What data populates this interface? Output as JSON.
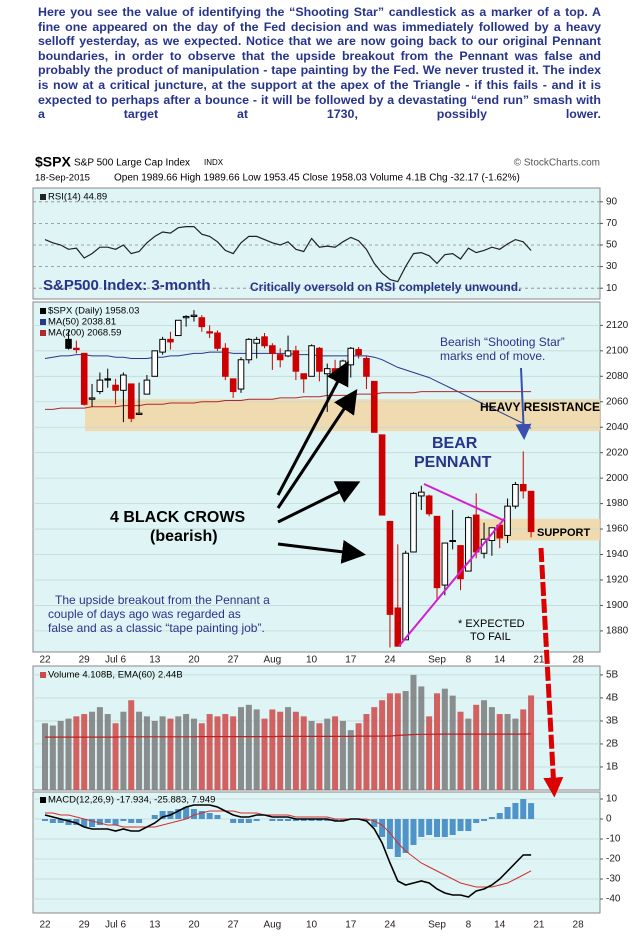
{
  "commentary": "Here you see the value of identifying the “Shooting Star” candlestick as a marker of a top. A fine one appeared on the day of the Fed decision and was immediately followed by a heavy selloff yesterday, as we expected. Notice that we are now going back to our original Pennant boundaries, in order to observe that the upside breakout from the Pennant was false and probably the product of manipulation - tape painting by the Fed. We never trusted it. The index is now at a critical juncture, at the support at the apex of the Triangle - if this fails - and it is expected to perhaps after a bounce -  it will be followed by a devastating “end run” smash with a target at 1730, possibly lower.",
  "chart_data": {
    "type": "candlestick",
    "symbol": "$SPX",
    "name": "S&P 500 Large Cap Index",
    "exchange": "INDX",
    "date": "18-Sep-2015",
    "quote": "Open 1989.66  High 1989.66  Low 1953.45  Close 1958.03  Volume 4.1B  Chg -32.17 (-1.62%)",
    "source": "© StockCharts.com",
    "categories": [
      "22",
      null,
      null,
      null,
      null,
      "29",
      null,
      null,
      null,
      "Jul 6",
      null,
      null,
      null,
      null,
      "13",
      null,
      null,
      null,
      null,
      "20",
      null,
      null,
      null,
      null,
      "27",
      null,
      null,
      null,
      null,
      "Aug",
      null,
      null,
      null,
      null,
      "10",
      null,
      null,
      null,
      null,
      "17",
      null,
      null,
      null,
      null,
      "24",
      null,
      null,
      null,
      null,
      null,
      "Sep",
      null,
      null,
      null,
      "8",
      null,
      null,
      null,
      "14",
      null,
      null,
      null,
      null,
      "21",
      null,
      null,
      null,
      null,
      "28",
      null,
      null,
      null,
      null
    ],
    "rsi": {
      "ylim": [
        0,
        100
      ],
      "yticks": [
        10,
        30,
        50,
        70,
        90
      ],
      "series": [
        {
          "name": "RSI(14) 44.89",
          "color": "#222222",
          "values": [
            55,
            52,
            50,
            46,
            47,
            38,
            42,
            48,
            48,
            46,
            50,
            42,
            44,
            52,
            58,
            62,
            61,
            66,
            67,
            67,
            60,
            58,
            53,
            45,
            42,
            52,
            58,
            58,
            55,
            52,
            50,
            53,
            46,
            44,
            56,
            48,
            49,
            48,
            53,
            57,
            54,
            46,
            33,
            24,
            18,
            16,
            30,
            42,
            43,
            40,
            33,
            41,
            42,
            37,
            47,
            43,
            45,
            48,
            46,
            51,
            55,
            53,
            44.89,
            null,
            null,
            null,
            null,
            null,
            null,
            null,
            null,
            null,
            null
          ]
        }
      ]
    },
    "price": {
      "label": "$SPX (Daily) 1958.03",
      "ylim": [
        1865,
        2136
      ],
      "yticks": [
        1880,
        1900,
        1920,
        1940,
        1960,
        1980,
        2000,
        2020,
        2040,
        2060,
        2080,
        2100,
        2120
      ],
      "up_color": "#000000",
      "down_color": "#cc0000",
      "open": [
        null,
        null,
        null,
        2109,
        2102,
        2098,
        2062,
        2068,
        2078,
        2073,
        2069,
        2074,
        2050,
        2066,
        2080,
        2099,
        2109,
        2112,
        2126,
        2127,
        2126,
        2115,
        2114,
        2102,
        2078,
        2070,
        2093,
        2106,
        2111,
        2104,
        2097,
        2096,
        2100,
        2082,
        2080,
        2102,
        2082,
        2086,
        2083,
        2089,
        2101,
        2094,
        2076,
        2034,
        1966,
        1898,
        1873,
        1942,
        1986,
        1986,
        1970,
        1916,
        1951,
        1947,
        1927,
        1971,
        1941,
        1951,
        1963,
        1955,
        1978,
        1995,
        1989.66,
        null,
        null,
        null,
        null,
        null,
        null,
        null,
        null,
        null,
        null
      ],
      "high": [
        null,
        null,
        null,
        2116,
        2108,
        2098,
        2074,
        2083,
        2086,
        2078,
        2083,
        2074,
        2075,
        2081,
        2100,
        2111,
        2115,
        2124,
        2128,
        2132,
        2128,
        2120,
        2116,
        2106,
        2078,
        2095,
        2110,
        2111,
        2114,
        2106,
        2102,
        2112,
        2104,
        2082,
        2105,
        2103,
        2090,
        2093,
        2093,
        2103,
        2103,
        2096,
        2076,
        2034,
        1966,
        1948,
        1943,
        1989,
        1994,
        1987,
        1970,
        1949,
        1975,
        1947,
        1970,
        1988,
        1965,
        1961,
        1963,
        1984,
        1997,
        2021,
        1989.66,
        null,
        null,
        null,
        null,
        null,
        null,
        null,
        null,
        null,
        null
      ],
      "low": [
        null,
        null,
        null,
        2101,
        2098,
        2057,
        2056,
        2066,
        2071,
        2058,
        2044,
        2044,
        2050,
        2066,
        2080,
        2097,
        2101,
        2112,
        2119,
        2123,
        2115,
        2110,
        2100,
        2077,
        2063,
        2067,
        2090,
        2094,
        2102,
        2085,
        2087,
        2095,
        2077,
        2067,
        2080,
        2076,
        2052,
        2076,
        2079,
        2079,
        2094,
        2070,
        2036,
        1971,
        1867,
        1868,
        1873,
        1942,
        1975,
        1970,
        1904,
        1908,
        1944,
        1912,
        1927,
        1937,
        1937,
        1939,
        1945,
        1949,
        1976,
        1984,
        1953.45,
        null,
        null,
        null,
        null,
        null,
        null,
        null,
        null,
        null,
        null
      ],
      "close": [
        null,
        null,
        null,
        2102,
        2101,
        2058,
        2063,
        2077,
        2077,
        2069,
        2081,
        2047,
        2051,
        2077,
        2100,
        2109,
        2107,
        2124,
        2127,
        2128,
        2119,
        2114,
        2102,
        2080,
        2068,
        2093,
        2109,
        2109,
        2104,
        2098,
        2093,
        2100,
        2084,
        2078,
        2104,
        2084,
        2086,
        2083,
        2092,
        2102,
        2097,
        2080,
        2036,
        1971,
        1893,
        1868,
        1941,
        1988,
        1989,
        1972,
        1914,
        1949,
        1951,
        1921,
        1969,
        1942,
        1952,
        1961,
        1953,
        1978,
        1995,
        1990,
        1958.03,
        null,
        null,
        null,
        null,
        null,
        null,
        null,
        null,
        null,
        null
      ],
      "series": [
        {
          "name": "MA(50) 2038.81",
          "color": "#25388f",
          "values": [
            2094,
            2095,
            2096,
            2096,
            2097,
            2097,
            2096,
            2096,
            2096,
            2095,
            2095,
            2094,
            2094,
            2094,
            2095,
            2095,
            2096,
            2096,
            2097,
            2098,
            2098,
            2099,
            2099,
            2099,
            2098,
            2098,
            2098,
            2098,
            2098,
            2098,
            2098,
            2098,
            2097,
            2097,
            2097,
            2096,
            2096,
            2096,
            2096,
            2096,
            2096,
            2096,
            2095,
            2093,
            2090,
            2087,
            2085,
            2083,
            2081,
            2079,
            2076,
            2073,
            2070,
            2067,
            2064,
            2061,
            2058,
            2055,
            2052,
            2049,
            2046,
            2043,
            2039,
            null,
            null,
            null,
            null,
            null,
            null,
            null,
            null,
            null,
            null
          ]
        },
        {
          "name": "MA(200) 2068.59",
          "color": "#b0282c",
          "values": [
            2054,
            2054,
            2055,
            2055,
            2055,
            2055,
            2056,
            2056,
            2056,
            2056,
            2057,
            2057,
            2057,
            2058,
            2058,
            2058,
            2059,
            2059,
            2059,
            2059,
            2060,
            2060,
            2060,
            2061,
            2061,
            2061,
            2062,
            2062,
            2062,
            2062,
            2063,
            2063,
            2063,
            2064,
            2064,
            2064,
            2065,
            2065,
            2065,
            2065,
            2066,
            2066,
            2066,
            2067,
            2067,
            2067,
            2067,
            2067,
            2068,
            2068,
            2068,
            2068,
            2068,
            2068,
            2068,
            2068,
            2068,
            2068,
            2068,
            2068,
            2068,
            2068,
            2068,
            null,
            null,
            null,
            null,
            null,
            null,
            null,
            null,
            null,
            null
          ]
        }
      ],
      "zones": [
        {
          "label": "HEAVY RESISTANCE",
          "range": [
            2037,
            2062
          ],
          "color": "#f2d6a2"
        },
        {
          "label": "SUPPORT",
          "range": [
            1951,
            1968
          ],
          "color": "#f2d6a2"
        }
      ],
      "annotations": {
        "heading": "S&P500 Index: 3-month",
        "rsi_note": "Critically oversold on RSI completely unwound.",
        "shooting_star": [
          "Bearish “Shooting Star”",
          "marks end of move."
        ],
        "pennant": [
          "BEAR",
          "PENNANT"
        ],
        "crows": [
          "4 BLACK CROWS",
          "(bearish)"
        ],
        "breakout": [
          "The upside breakout from the Pennant a",
          "couple of days ago was regarded as",
          "false and as a classic “tape painting job”."
        ],
        "fail": [
          "* EXPECTED",
          "TO FAIL"
        ]
      }
    },
    "volume": {
      "label": "Volume 4.108B, EMA(60) 2.44B",
      "ylim": [
        0,
        5.3
      ],
      "yticks": [
        {
          "value": 1,
          "label": "1B"
        },
        {
          "value": 2,
          "label": "2B"
        },
        {
          "value": 3,
          "label": "3B"
        },
        {
          "value": 4,
          "label": "4B"
        },
        {
          "value": 5,
          "label": "5B"
        }
      ],
      "up_color": "#7a7a7a",
      "down_color": "#d04848",
      "values": [
        2.9,
        2.8,
        3.0,
        3.1,
        3.2,
        3.3,
        3.4,
        3.6,
        3.3,
        2.9,
        3.4,
        3.9,
        3.4,
        3.2,
        3.0,
        3.2,
        3.1,
        3.2,
        3.3,
        3.1,
        2.9,
        3.3,
        3.2,
        3.3,
        3.2,
        3.6,
        3.7,
        3.5,
        3.1,
        3.5,
        3.4,
        3.6,
        3.4,
        3.2,
        3.0,
        2.9,
        3.1,
        3.2,
        3.0,
        2.6,
        2.9,
        3.3,
        3.6,
        3.9,
        4.2,
        4.2,
        4.3,
        5.0,
        4.5,
        3.2,
        4.2,
        4.4,
        4.1,
        3.4,
        3.1,
        3.7,
        3.9,
        3.6,
        3.3,
        3.3,
        3.1,
        3.5,
        4.108,
        null,
        null,
        null,
        null,
        null,
        null,
        null,
        null,
        null,
        null
      ],
      "ema": {
        "color": "#c02020",
        "values": [
          2.3,
          2.3,
          2.3,
          2.3,
          2.3,
          2.3,
          2.3,
          2.3,
          2.3,
          2.3,
          2.31,
          2.31,
          2.31,
          2.31,
          2.31,
          2.31,
          2.31,
          2.31,
          2.31,
          2.31,
          2.32,
          2.32,
          2.32,
          2.32,
          2.32,
          2.32,
          2.32,
          2.32,
          2.32,
          2.32,
          2.33,
          2.33,
          2.33,
          2.33,
          2.33,
          2.33,
          2.33,
          2.33,
          2.33,
          2.33,
          2.34,
          2.34,
          2.34,
          2.34,
          2.34,
          2.37,
          2.39,
          2.41,
          2.42,
          2.42,
          2.43,
          2.43,
          2.43,
          2.43,
          2.43,
          2.43,
          2.43,
          2.43,
          2.43,
          2.43,
          2.43,
          2.43,
          2.44,
          null,
          null,
          null,
          null,
          null,
          null,
          null,
          null,
          null,
          null
        ]
      }
    },
    "macd": {
      "label": "MACD(12,26,9) -17.934, -25.883, 7.949",
      "ylim": [
        -47,
        13
      ],
      "yticks": [
        -40,
        -30,
        -20,
        -10,
        0,
        10
      ],
      "macd": {
        "color": "#000000",
        "values": [
          2,
          1,
          0,
          -1,
          -2,
          -4,
          -5,
          -5,
          -5,
          -6,
          -5,
          -6,
          -6,
          -4,
          -2,
          1,
          2,
          4,
          6,
          7,
          7,
          7,
          6,
          4,
          2,
          1,
          1,
          2,
          2,
          1,
          1,
          1,
          0,
          0,
          0,
          0,
          0,
          -1,
          -1,
          0,
          0,
          -1,
          -5,
          -12,
          -22,
          -31,
          -33,
          -32,
          -31,
          -32,
          -35,
          -37,
          -38,
          -38,
          -39,
          -36,
          -35,
          -33,
          -30,
          -26,
          -22,
          -18,
          -17.934,
          null,
          null,
          null,
          null,
          null,
          null,
          null,
          null,
          null,
          null
        ]
      },
      "signal": {
        "color": "#d03030",
        "values": [
          3,
          3,
          2,
          2,
          1,
          0,
          -1,
          -2,
          -3,
          -3,
          -4,
          -4,
          -4,
          -4,
          -4,
          -3,
          -2,
          -1,
          0,
          2,
          3,
          4,
          4,
          4,
          4,
          3,
          3,
          3,
          2,
          2,
          2,
          2,
          1,
          1,
          1,
          1,
          1,
          0,
          0,
          0,
          0,
          0,
          -1,
          -3,
          -7,
          -12,
          -16,
          -19,
          -22,
          -24,
          -26,
          -28,
          -30,
          -32,
          -33,
          -34,
          -34,
          -34,
          -33,
          -32,
          -30,
          -28,
          -25.883,
          null,
          null,
          null,
          null,
          null,
          null,
          null,
          null,
          null,
          null
        ]
      },
      "histogram": {
        "color": "#4f93c9",
        "values": [
          -1,
          -2,
          -2,
          -3,
          -3,
          -4,
          -4,
          -3,
          -2,
          -3,
          -1,
          -2,
          -2,
          0,
          2,
          4,
          4,
          5,
          6,
          5,
          4,
          3,
          2,
          0,
          -2,
          -2,
          -2,
          -1,
          0,
          -1,
          -1,
          -1,
          -1,
          -1,
          -1,
          -1,
          -1,
          -1,
          -1,
          0,
          0,
          -1,
          -4,
          -9,
          -15,
          -19,
          -17,
          -13,
          -9,
          -8,
          -9,
          -9,
          -8,
          -6,
          -6,
          -2,
          -1,
          1,
          3,
          6,
          8,
          10,
          7.949,
          null,
          null,
          null,
          null,
          null,
          null,
          null,
          null,
          null,
          null
        ]
      }
    }
  }
}
